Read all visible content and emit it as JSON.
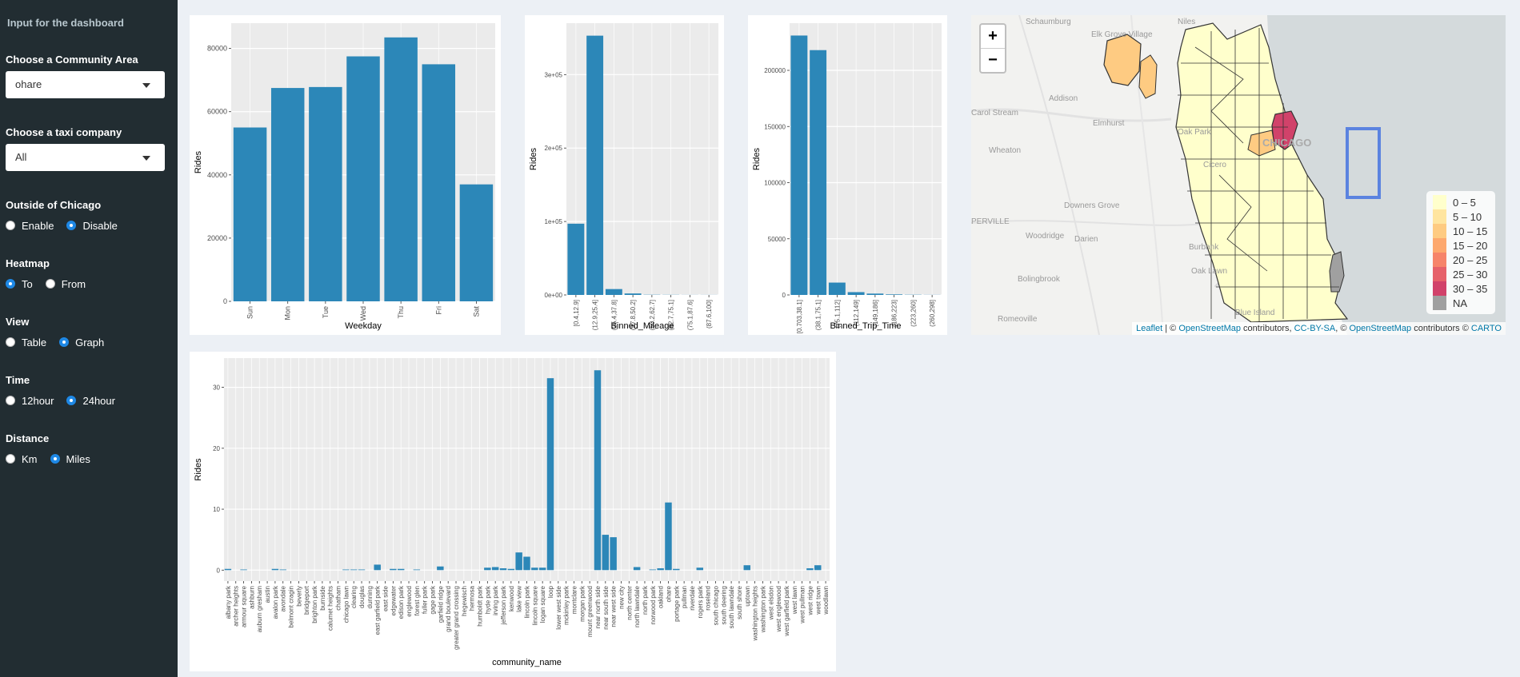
{
  "sidebar": {
    "title": "Input for the dashboard",
    "community_label": "Choose a Community Area",
    "community_value": "ohare",
    "company_label": "Choose a taxi company",
    "company_value": "All",
    "outside_label": "Outside of Chicago",
    "outside_options": [
      "Enable",
      "Disable"
    ],
    "outside_selected": "Disable",
    "heatmap_label": "Heatmap",
    "heatmap_options": [
      "To",
      "From"
    ],
    "heatmap_selected": "To",
    "view_label": "View",
    "view_options": [
      "Table",
      "Graph"
    ],
    "view_selected": "Graph",
    "time_label": "Time",
    "time_options": [
      "12hour",
      "24hour"
    ],
    "time_selected": "24hour",
    "distance_label": "Distance",
    "distance_options": [
      "Km",
      "Miles"
    ],
    "distance_selected": "Miles"
  },
  "colors": {
    "bar": "#2c87b8",
    "panel_bg": "#ebebeb",
    "sidebar": "#222d32",
    "body": "#ecf0f5"
  },
  "chart_data": [
    {
      "id": "weekday",
      "type": "bar",
      "xlabel": "Weekday",
      "ylabel": "Rides",
      "categories": [
        "Sun",
        "Mon",
        "Tue",
        "Wed",
        "Thu",
        "Fri",
        "Sat"
      ],
      "values": [
        55000,
        67500,
        67800,
        77500,
        83500,
        75000,
        37000
      ],
      "ylim": [
        0,
        88000
      ],
      "yticks": [
        0,
        20000,
        40000,
        60000,
        80000
      ],
      "yticklabels": [
        "0",
        "20000",
        "40000",
        "60000",
        "80000"
      ]
    },
    {
      "id": "mileage",
      "type": "bar",
      "xlabel": "Binned_Mileage",
      "ylabel": "Rides",
      "categories": [
        "[0.4,12.9]",
        "(12.9,25.4]",
        "(25.4,37.8]",
        "(37.8,50.2]",
        "(50.2,62.7]",
        "(62.7,75.1]",
        "(75.1,87.6]",
        "(87.6,100]"
      ],
      "values": [
        97000,
        353000,
        8000,
        2000,
        300,
        200,
        100,
        100
      ],
      "ylim": [
        0,
        370000
      ],
      "yticks": [
        0,
        100000,
        200000,
        300000
      ],
      "yticklabels": [
        "0e+00",
        "1e+05",
        "2e+05",
        "3e+05"
      ]
    },
    {
      "id": "trip_time",
      "type": "bar",
      "xlabel": "Binned_Trip_Time",
      "ylabel": "Rides",
      "categories": [
        "[0.703,38.1]",
        "(38.1,75.1]",
        "(75.1,112]",
        "(112,149]",
        "(149,186]",
        "(186,223]",
        "(223,260]",
        "(260,298]"
      ],
      "values": [
        231000,
        218000,
        11000,
        2500,
        1200,
        500,
        200,
        100
      ],
      "ylim": [
        0,
        242000
      ],
      "yticks": [
        0,
        50000,
        100000,
        150000,
        200000
      ],
      "yticklabels": [
        "0",
        "50000",
        "100000",
        "150000",
        "200000"
      ]
    },
    {
      "id": "community",
      "type": "bar",
      "xlabel": "community_name",
      "ylabel": "Rides",
      "categories": [
        "albany park",
        "archer heights",
        "armour square",
        "ashburn",
        "auburn gresham",
        "austin",
        "avalon park",
        "avondale",
        "belmont cragin",
        "beverly",
        "bridgeport",
        "brighton park",
        "burnside",
        "calumet heights",
        "chatham",
        "chicago lawn",
        "clearing",
        "douglas",
        "dunning",
        "east garfield park",
        "east side",
        "edgewater",
        "edison park",
        "englewood",
        "forest glen",
        "fuller park",
        "gage park",
        "garfield ridge",
        "grand boulevard",
        "greater grand crossing",
        "hegewisch",
        "hermosa",
        "humboldt park",
        "hyde park",
        "irving park",
        "jefferson park",
        "kenwood",
        "lake view",
        "lincoln park",
        "lincoln square",
        "logan square",
        "loop",
        "lower west side",
        "mckinley park",
        "montclare",
        "morgan park",
        "mount greenwood",
        "near north side",
        "near south side",
        "near west side",
        "new city",
        "north center",
        "north lawndale",
        "north park",
        "norwood park",
        "oakland",
        "ohare",
        "portage park",
        "pullman",
        "riverdale",
        "rogers park",
        "roseland",
        "south chicago",
        "south deering",
        "south lawndale",
        "south shore",
        "uptown",
        "washington heights",
        "washington park",
        "west elsdon",
        "west englewood",
        "west garfield park",
        "west lawn",
        "west pullman",
        "west ridge",
        "west town",
        "woodlawn"
      ],
      "values": [
        0.2,
        0,
        0.1,
        0,
        0,
        0,
        0.2,
        0.1,
        0,
        0,
        0,
        0,
        0,
        0,
        0,
        0.1,
        0.1,
        0.1,
        0,
        0.9,
        0,
        0.2,
        0.2,
        0,
        0.1,
        0,
        0,
        0.6,
        0,
        0,
        0,
        0,
        0,
        0.4,
        0.5,
        0.3,
        0.2,
        2.9,
        2.2,
        0.4,
        0.4,
        31.5,
        0,
        0,
        0,
        0,
        0,
        32.8,
        5.8,
        5.4,
        0,
        0,
        0.5,
        0,
        0.1,
        0.3,
        11.1,
        0.2,
        0,
        0,
        0.4,
        0,
        0,
        0,
        0,
        0,
        0.8,
        0,
        0,
        0,
        0,
        0,
        0,
        0,
        0.3,
        0.8,
        0
      ],
      "ylim": [
        -1.8,
        34.8
      ],
      "yticks": [
        0,
        10,
        20,
        30
      ],
      "yticklabels": [
        "0",
        "10",
        "20",
        "30"
      ]
    }
  ],
  "map": {
    "zoom_in": "+",
    "zoom_out": "−",
    "city_label": "CHICAGO",
    "place_labels": [
      "Schaumburg",
      "Niles",
      "Elk Grove Village",
      "Addison",
      "Elmhurst",
      "Carol Stream",
      "Oak Park",
      "Wheaton",
      "Cicero",
      "Downers Grove",
      "PERVILLE",
      "Woodridge",
      "Darien",
      "Burbank",
      "Bolingbrook",
      "Oak Lawn",
      "Romeoville",
      "Blue Island"
    ],
    "legend": [
      {
        "label": "0 – 5",
        "color": "#ffffcc"
      },
      {
        "label": "5 – 10",
        "color": "#ffe5a0"
      },
      {
        "label": "10 – 15",
        "color": "#fecb82"
      },
      {
        "label": "15 – 20",
        "color": "#fda86e"
      },
      {
        "label": "20 – 25",
        "color": "#f6846a"
      },
      {
        "label": "25 – 30",
        "color": "#e6616a"
      },
      {
        "label": "30 – 35",
        "color": "#d1426a"
      },
      {
        "label": "NA",
        "color": "#a0a0a0"
      }
    ],
    "attribution": {
      "leaflet": "Leaflet",
      "sep1": " | © ",
      "osm1": "OpenStreetMap",
      "contrib1": " contributors, ",
      "ccbysa": "CC-BY-SA",
      "sep2": ", © ",
      "osm2": "OpenStreetMap",
      "contrib2": " contributors © ",
      "carto": "CARTO"
    }
  }
}
